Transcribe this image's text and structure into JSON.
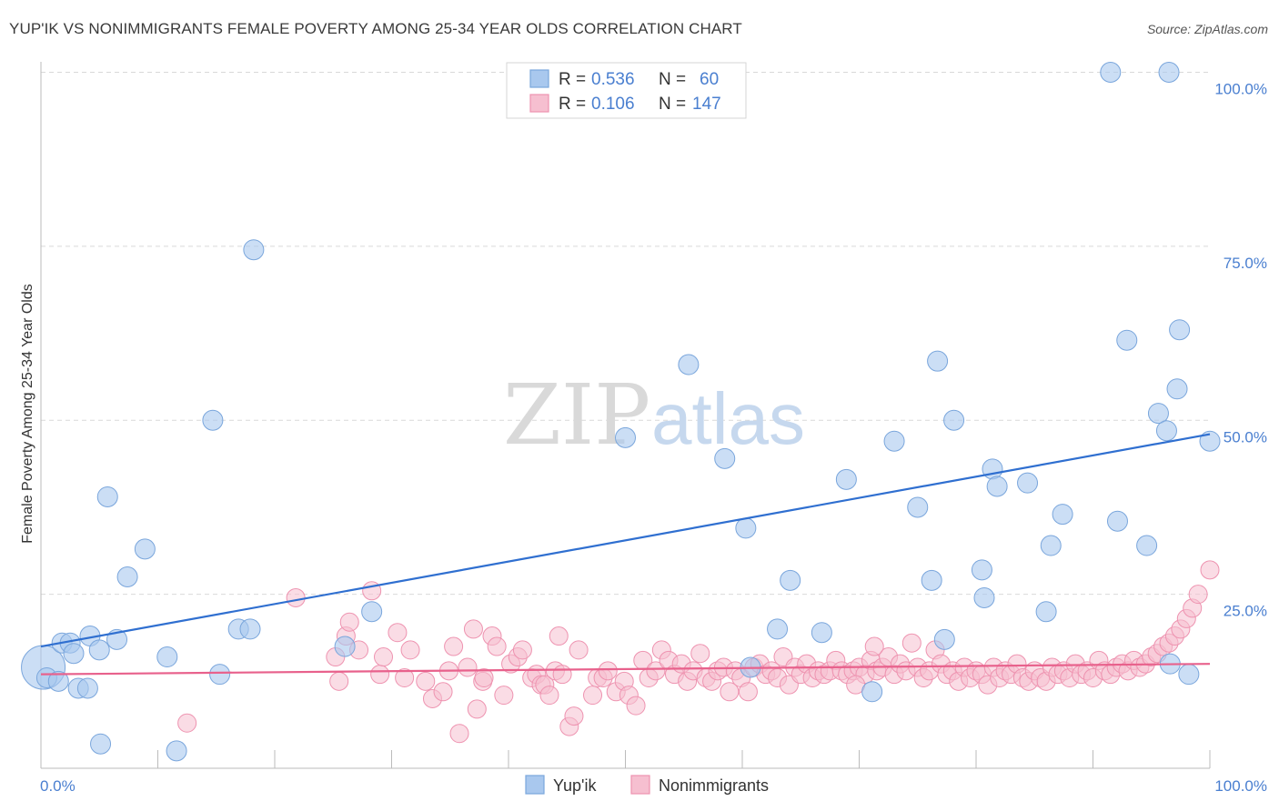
{
  "title": "YUP'IK VS NONIMMIGRANTS FEMALE POVERTY AMONG 25-34 YEAR OLDS CORRELATION CHART",
  "source": "Source: ZipAtlas.com",
  "watermark": {
    "part1": "ZIP",
    "part2": "atlas"
  },
  "colors": {
    "blue_fill": "#a9c8ee",
    "blue_stroke": "#7aa6dc",
    "blue_line": "#2f6fd0",
    "pink_fill": "#f6bfd0",
    "pink_stroke": "#ee93b0",
    "pink_line": "#e8618c",
    "grid": "#d9d9d9",
    "tick_text": "#4a7fd0"
  },
  "legend": {
    "rows": [
      {
        "r_label": "R =",
        "r_value": "0.536",
        "n_label": "N =",
        "n_value": "60"
      },
      {
        "r_label": "R =",
        "r_value": "0.106",
        "n_label": "N =",
        "n_value": "147"
      }
    ]
  },
  "bottom_legend": [
    "Yup'ik",
    "Nonimmigrants"
  ],
  "chart_data": {
    "type": "scatter",
    "title": "YUP'IK VS NONIMMIGRANTS FEMALE POVERTY AMONG 25-34 YEAR OLDS CORRELATION CHART",
    "xlabel": "",
    "ylabel": "Female Poverty Among 25-34 Year Olds",
    "xlim": [
      0,
      100
    ],
    "ylim": [
      0,
      100
    ],
    "x_tick_labels": [
      "0.0%",
      "100.0%"
    ],
    "y_tick_labels": [
      "25.0%",
      "50.0%",
      "75.0%",
      "100.0%"
    ],
    "y_ticks": [
      25,
      50,
      75,
      100
    ],
    "grid": true,
    "legend_position": "top-center",
    "series": [
      {
        "name": "Yup'ik",
        "r": 0.536,
        "n": 60,
        "trend": {
          "x": [
            0,
            100
          ],
          "y": [
            17.5,
            48.0
          ]
        },
        "points": [
          [
            0.2,
            14.5,
            24
          ],
          [
            0.5,
            13.0,
            11
          ],
          [
            1.5,
            12.5,
            11
          ],
          [
            1.8,
            18.0,
            11
          ],
          [
            2.5,
            18.0,
            11
          ],
          [
            2.8,
            16.5,
            11
          ],
          [
            3.2,
            11.5,
            11
          ],
          [
            4.0,
            11.5,
            11
          ],
          [
            4.2,
            19.0,
            11
          ],
          [
            5.0,
            17.0,
            11
          ],
          [
            5.1,
            3.5,
            11
          ],
          [
            5.7,
            39.0,
            11
          ],
          [
            6.5,
            18.5,
            11
          ],
          [
            7.4,
            27.5,
            11
          ],
          [
            8.9,
            31.5,
            11
          ],
          [
            10.8,
            16.0,
            11
          ],
          [
            11.6,
            2.5,
            11
          ],
          [
            14.7,
            50.0,
            11
          ],
          [
            15.3,
            13.5,
            11
          ],
          [
            16.9,
            20.0,
            11
          ],
          [
            17.9,
            20.0,
            11
          ],
          [
            18.2,
            74.5,
            11
          ],
          [
            26.0,
            17.5,
            11
          ],
          [
            28.3,
            22.5,
            11
          ],
          [
            50.0,
            47.5,
            11
          ],
          [
            55.4,
            58.0,
            11
          ],
          [
            58.5,
            44.5,
            11
          ],
          [
            60.3,
            34.5,
            11
          ],
          [
            60.7,
            14.5,
            11
          ],
          [
            63.0,
            20.0,
            11
          ],
          [
            64.1,
            27.0,
            11
          ],
          [
            66.8,
            19.5,
            11
          ],
          [
            68.9,
            41.5,
            11
          ],
          [
            71.1,
            11.0,
            11
          ],
          [
            73.0,
            47.0,
            11
          ],
          [
            75.0,
            37.5,
            11
          ],
          [
            76.2,
            27.0,
            11
          ],
          [
            77.3,
            18.5,
            11
          ],
          [
            76.7,
            58.5,
            11
          ],
          [
            78.1,
            50.0,
            11
          ],
          [
            80.5,
            28.5,
            11
          ],
          [
            80.7,
            24.5,
            11
          ],
          [
            81.4,
            43.0,
            11
          ],
          [
            81.8,
            40.5,
            11
          ],
          [
            84.4,
            41.0,
            11
          ],
          [
            86.0,
            22.5,
            11
          ],
          [
            86.4,
            32.0,
            11
          ],
          [
            87.4,
            36.5,
            11
          ],
          [
            91.5,
            100.0,
            11
          ],
          [
            92.1,
            35.5,
            11
          ],
          [
            92.9,
            61.5,
            11
          ],
          [
            94.6,
            32.0,
            11
          ],
          [
            95.6,
            51.0,
            11
          ],
          [
            96.3,
            48.5,
            11
          ],
          [
            96.5,
            100.0,
            11
          ],
          [
            96.6,
            15.0,
            11
          ],
          [
            97.2,
            54.5,
            11
          ],
          [
            97.4,
            63.0,
            11
          ],
          [
            100.0,
            47.0,
            11
          ],
          [
            98.2,
            13.5,
            11
          ]
        ]
      },
      {
        "name": "Nonimmigrants",
        "r": 0.106,
        "n": 147,
        "trend": {
          "x": [
            0,
            100
          ],
          "y": [
            13.5,
            15.0
          ]
        },
        "points": [
          [
            12.5,
            6.5,
            10
          ],
          [
            21.8,
            24.5,
            10
          ],
          [
            25.2,
            16.0,
            10
          ],
          [
            25.5,
            12.5,
            10
          ],
          [
            26.1,
            19.0,
            10
          ],
          [
            26.4,
            21.0,
            10
          ],
          [
            27.2,
            17.0,
            10
          ],
          [
            28.3,
            25.5,
            10
          ],
          [
            29.0,
            13.5,
            10
          ],
          [
            29.3,
            16.0,
            10
          ],
          [
            30.5,
            19.5,
            10
          ],
          [
            31.1,
            13.0,
            10
          ],
          [
            31.6,
            17.0,
            10
          ],
          [
            32.9,
            12.5,
            10
          ],
          [
            33.5,
            10.0,
            10
          ],
          [
            34.4,
            11.0,
            10
          ],
          [
            34.9,
            14.0,
            10
          ],
          [
            35.3,
            17.5,
            10
          ],
          [
            35.8,
            5.0,
            10
          ],
          [
            36.5,
            14.5,
            10
          ],
          [
            37.0,
            20.0,
            10
          ],
          [
            37.3,
            8.5,
            10
          ],
          [
            37.8,
            12.5,
            10
          ],
          [
            38.6,
            19.0,
            10
          ],
          [
            39.0,
            17.5,
            10
          ],
          [
            39.6,
            10.5,
            10
          ],
          [
            40.2,
            15.0,
            10
          ],
          [
            40.8,
            16.0,
            10
          ],
          [
            41.2,
            17.0,
            10
          ],
          [
            42.0,
            13.0,
            10
          ],
          [
            42.4,
            13.5,
            10
          ],
          [
            42.8,
            12.0,
            10
          ],
          [
            43.1,
            12.0,
            10
          ],
          [
            43.5,
            10.5,
            10
          ],
          [
            44.0,
            14.0,
            10
          ],
          [
            44.3,
            19.0,
            10
          ],
          [
            44.6,
            13.5,
            10
          ],
          [
            45.2,
            6.0,
            10
          ],
          [
            45.6,
            7.5,
            10
          ],
          [
            46.0,
            17.0,
            10
          ],
          [
            47.2,
            10.5,
            10
          ],
          [
            47.6,
            13.0,
            10
          ],
          [
            48.1,
            13.0,
            10
          ],
          [
            48.5,
            14.0,
            10
          ],
          [
            49.2,
            11.0,
            10
          ],
          [
            49.9,
            12.5,
            10
          ],
          [
            50.3,
            10.5,
            10
          ],
          [
            50.9,
            9.0,
            10
          ],
          [
            51.5,
            15.5,
            10
          ],
          [
            52.0,
            13.0,
            10
          ],
          [
            52.6,
            14.0,
            10
          ],
          [
            53.1,
            17.0,
            10
          ],
          [
            53.7,
            15.5,
            10
          ],
          [
            54.2,
            13.5,
            10
          ],
          [
            54.8,
            15.0,
            10
          ],
          [
            55.3,
            12.5,
            10
          ],
          [
            55.8,
            14.0,
            10
          ],
          [
            56.4,
            16.5,
            10
          ],
          [
            56.9,
            13.0,
            10
          ],
          [
            57.4,
            12.5,
            10
          ],
          [
            57.9,
            14.0,
            10
          ],
          [
            58.4,
            14.5,
            10
          ],
          [
            58.9,
            11.0,
            10
          ],
          [
            59.4,
            14.0,
            10
          ],
          [
            59.9,
            13.0,
            10
          ],
          [
            60.5,
            11.0,
            10
          ],
          [
            61.0,
            14.5,
            10
          ],
          [
            61.5,
            15.0,
            10
          ],
          [
            62.0,
            13.5,
            10
          ],
          [
            62.5,
            14.0,
            10
          ],
          [
            63.0,
            13.0,
            10
          ],
          [
            63.5,
            16.0,
            10
          ],
          [
            64.0,
            12.0,
            10
          ],
          [
            64.5,
            14.5,
            10
          ],
          [
            65.0,
            13.5,
            10
          ],
          [
            65.5,
            15.0,
            10
          ],
          [
            66.0,
            13.0,
            10
          ],
          [
            66.5,
            14.0,
            10
          ],
          [
            67.0,
            13.5,
            10
          ],
          [
            67.5,
            14.0,
            10
          ],
          [
            68.0,
            15.5,
            10
          ],
          [
            68.5,
            14.0,
            10
          ],
          [
            69.0,
            13.5,
            10
          ],
          [
            69.5,
            14.0,
            10
          ],
          [
            70.0,
            14.5,
            10
          ],
          [
            70.5,
            13.5,
            10
          ],
          [
            71.0,
            15.5,
            10
          ],
          [
            71.5,
            14.0,
            10
          ],
          [
            72.0,
            14.5,
            10
          ],
          [
            72.5,
            16.0,
            10
          ],
          [
            73.0,
            13.5,
            10
          ],
          [
            73.5,
            15.0,
            10
          ],
          [
            74.0,
            14.0,
            10
          ],
          [
            74.5,
            18.0,
            10
          ],
          [
            75.0,
            14.5,
            10
          ],
          [
            75.5,
            13.0,
            10
          ],
          [
            76.0,
            14.0,
            10
          ],
          [
            76.5,
            17.0,
            10
          ],
          [
            77.0,
            15.0,
            10
          ],
          [
            77.5,
            13.5,
            10
          ],
          [
            78.0,
            14.0,
            10
          ],
          [
            78.5,
            12.5,
            10
          ],
          [
            79.0,
            14.5,
            10
          ],
          [
            79.5,
            13.0,
            10
          ],
          [
            80.0,
            14.0,
            10
          ],
          [
            80.5,
            13.5,
            10
          ],
          [
            81.0,
            12.0,
            10
          ],
          [
            81.5,
            14.5,
            10
          ],
          [
            82.0,
            13.0,
            10
          ],
          [
            82.5,
            14.0,
            10
          ],
          [
            83.0,
            13.5,
            10
          ],
          [
            83.5,
            15.0,
            10
          ],
          [
            84.0,
            13.0,
            10
          ],
          [
            84.5,
            12.5,
            10
          ],
          [
            85.0,
            14.0,
            10
          ],
          [
            85.5,
            13.0,
            10
          ],
          [
            86.0,
            12.5,
            10
          ],
          [
            86.5,
            14.5,
            10
          ],
          [
            87.0,
            13.5,
            10
          ],
          [
            87.5,
            14.0,
            10
          ],
          [
            88.0,
            13.0,
            10
          ],
          [
            88.5,
            15.0,
            10
          ],
          [
            89.0,
            13.5,
            10
          ],
          [
            89.5,
            14.0,
            10
          ],
          [
            90.0,
            13.0,
            10
          ],
          [
            90.5,
            15.5,
            10
          ],
          [
            91.0,
            14.0,
            10
          ],
          [
            91.5,
            13.5,
            10
          ],
          [
            92.0,
            14.5,
            10
          ],
          [
            92.5,
            15.0,
            10
          ],
          [
            93.0,
            14.0,
            10
          ],
          [
            93.5,
            15.5,
            10
          ],
          [
            94.0,
            14.5,
            10
          ],
          [
            94.5,
            15.0,
            10
          ],
          [
            95.0,
            16.0,
            10
          ],
          [
            95.5,
            16.5,
            10
          ],
          [
            96.0,
            17.5,
            10
          ],
          [
            96.5,
            18.0,
            10
          ],
          [
            97.0,
            19.0,
            10
          ],
          [
            97.5,
            20.0,
            10
          ],
          [
            98.0,
            21.5,
            10
          ],
          [
            98.5,
            23.0,
            10
          ],
          [
            99.0,
            25.0,
            10
          ],
          [
            100.0,
            28.5,
            10
          ],
          [
            71.3,
            17.5,
            10
          ],
          [
            37.9,
            13.0,
            10
          ],
          [
            69.7,
            12.0,
            10
          ]
        ]
      }
    ]
  }
}
